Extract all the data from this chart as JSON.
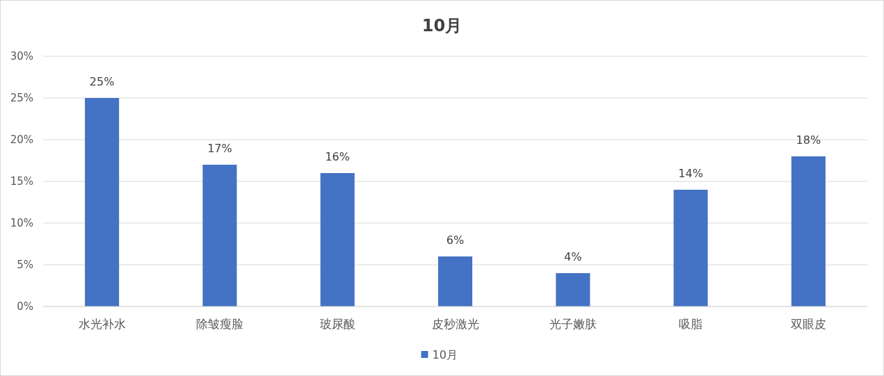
{
  "chart_data": {
    "type": "bar",
    "title": "10月",
    "categories": [
      "水光补水",
      "除皱瘦脸",
      "玻尿酸",
      "皮秒激光",
      "光子嫩肤",
      "吸脂",
      "双眼皮"
    ],
    "series": [
      {
        "name": "10月",
        "color": "#4472c4",
        "values": [
          25,
          17,
          16,
          6,
          4,
          14,
          18
        ],
        "value_labels": [
          "25%",
          "17%",
          "16%",
          "6%",
          "4%",
          "14%",
          "18%"
        ]
      }
    ],
    "ylim": [
      0,
      30
    ],
    "yticks": [
      {
        "value": 0,
        "label": "0%"
      },
      {
        "value": 5,
        "label": "5%"
      },
      {
        "value": 10,
        "label": "10%"
      },
      {
        "value": 15,
        "label": "15%"
      },
      {
        "value": 20,
        "label": "20%"
      },
      {
        "value": 25,
        "label": "25%"
      },
      {
        "value": 30,
        "label": "30%"
      }
    ],
    "grid": "y",
    "legend": "bottom"
  }
}
